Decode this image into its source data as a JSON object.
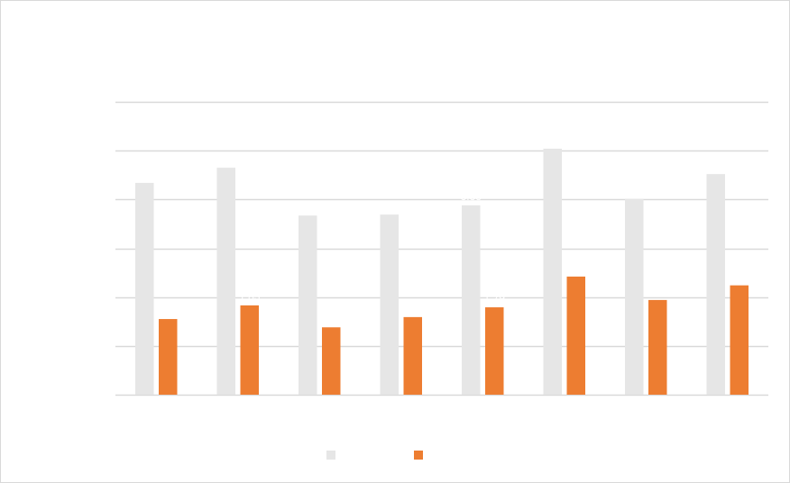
{
  "chart_data": {
    "type": "bar",
    "title": "",
    "xlabel": "",
    "ylabel": "",
    "categories": [
      "",
      "",
      "",
      "",
      "",
      "",
      "",
      ""
    ],
    "ylim": [
      0,
      6
    ],
    "yticks": [
      0,
      1,
      2,
      3,
      4,
      5,
      6
    ],
    "grid": true,
    "legend_position": "bottom",
    "series": [
      {
        "name": "",
        "color": "#e6e6e6",
        "values": [
          4.34,
          4.65,
          3.67,
          3.69,
          3.88,
          5.04,
          4.01,
          4.52
        ]
      },
      {
        "name": "",
        "color": "#ed7d31",
        "values": [
          1.55,
          1.83,
          1.38,
          1.59,
          1.79,
          2.42,
          1.94,
          2.24
        ]
      }
    ],
    "note": "All text (title, axis labels, data labels, legend names) is rendered in white and is not legible; values are in gridline units."
  },
  "colors": {
    "gridline": "#d9d9d9",
    "border": "#d9d9d9",
    "text": "#ffffff"
  }
}
